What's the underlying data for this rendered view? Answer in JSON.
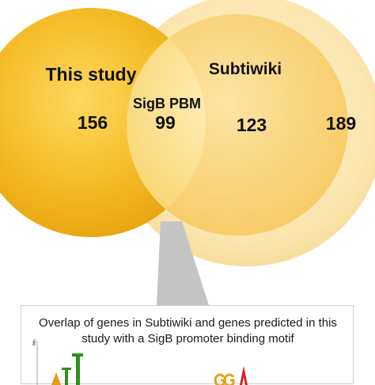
{
  "venn": {
    "set_a": {
      "label": "This study",
      "count": "156",
      "color": "#f3b91a"
    },
    "set_b": {
      "label": "Subtiwiki",
      "inner_count": "123",
      "outer_count": "189",
      "color": "#fbe7b5"
    },
    "intersection": {
      "label": "SigB PBM",
      "count": "99",
      "color": "#fbd46b"
    }
  },
  "caption": {
    "text": "Overlap of genes in Subtiwiki and genes predicted in this study with a SigB promoter binding motif"
  },
  "motif_axis": {
    "label": "bits",
    "tick": "2"
  }
}
